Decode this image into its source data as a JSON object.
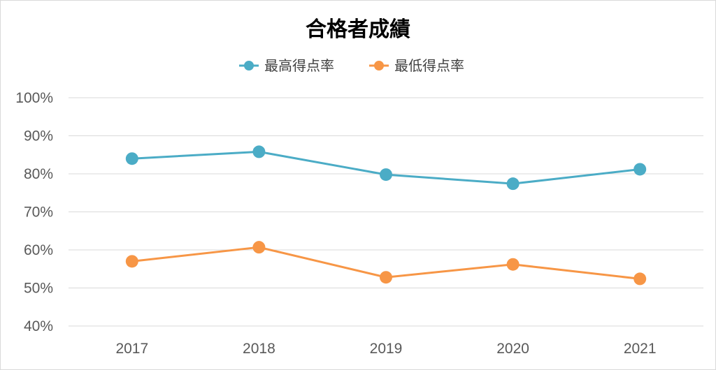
{
  "chart_data": {
    "type": "line",
    "title": "合格者成績",
    "categories": [
      "2017",
      "2018",
      "2019",
      "2020",
      "2021"
    ],
    "series": [
      {
        "name": "最高得点率",
        "color": "#4bacc6",
        "values": [
          84,
          85.8,
          79.8,
          77.4,
          81.2
        ]
      },
      {
        "name": "最低得点率",
        "color": "#f79646",
        "values": [
          57,
          60.7,
          52.8,
          56.2,
          52.4
        ]
      }
    ],
    "y_ticks": [
      "40%",
      "50%",
      "60%",
      "70%",
      "80%",
      "90%",
      "100%"
    ],
    "ylim": [
      40,
      100
    ],
    "grid": true,
    "legend_position": "top"
  }
}
